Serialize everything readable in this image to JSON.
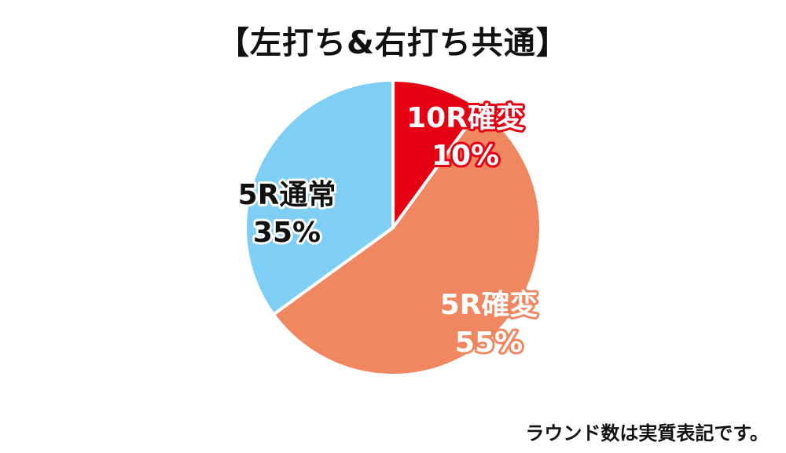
{
  "chart_data": {
    "type": "pie",
    "title": "【左打ち&右打ち共通】",
    "start_angle_deg": 0,
    "direction": "clockwise",
    "slices": [
      {
        "label": "10R確変",
        "value": 10,
        "value_label": "10%",
        "color": "#E60012",
        "text_color": "#FFFFFF",
        "outline_color": "#E60012"
      },
      {
        "label": "5R確変",
        "value": 55,
        "value_label": "55%",
        "color": "#F08761",
        "text_color": "#FFFFFF",
        "outline_color": "#F08761"
      },
      {
        "label": "5R通常",
        "value": 35,
        "value_label": "35%",
        "color": "#7FCEF4",
        "text_color": "#111111",
        "outline_color": "#FFFFFF"
      }
    ],
    "legend": "none",
    "footnote": "ラウンド数は実質表記です。"
  }
}
